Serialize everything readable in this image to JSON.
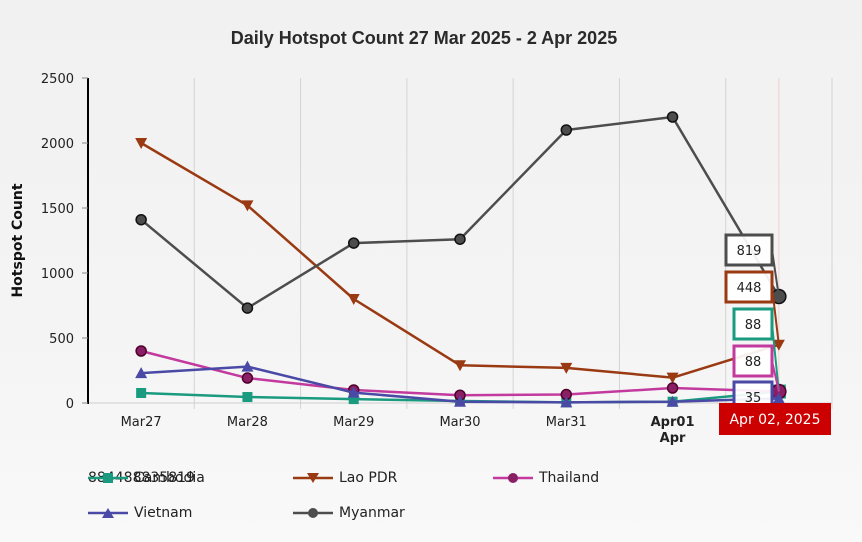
{
  "chart_data": {
    "type": "line",
    "title": "Daily Hotspot Count 27 Mar 2025 - 2 Apr 2025",
    "xlabel": "",
    "ylabel": "Hotspot Count",
    "ylim": [
      0,
      2500
    ],
    "yticks": [
      0,
      500,
      1000,
      1500,
      2000,
      2500
    ],
    "categories": [
      "Mar27",
      "Mar28",
      "Mar29",
      "Mar30",
      "Mar31",
      "Apr01",
      "Apr02"
    ],
    "category_labels": [
      "Mar27",
      "Mar28",
      "Mar29",
      "Mar30",
      "Mar31",
      "Apr01\nApr",
      ""
    ],
    "grid": "vertical",
    "legend_position": "bottom",
    "series": [
      {
        "name": "Cambodia",
        "color": "#1a9a7e",
        "marker": "square",
        "values": [
          77,
          46,
          30,
          15,
          5,
          10,
          88
        ],
        "latest": "88"
      },
      {
        "name": "Lao PDR",
        "color": "#9a3a12",
        "marker": "triangle-down",
        "values": [
          2000,
          1520,
          800,
          290,
          270,
          195,
          448
        ],
        "latest": "448"
      },
      {
        "name": "Thailand",
        "color": "#c23a9e",
        "marker": "circle",
        "values": [
          400,
          192,
          100,
          60,
          65,
          115,
          88
        ],
        "latest": "88"
      },
      {
        "name": "Vietnam",
        "color": "#4a4aa6",
        "marker": "triangle-up",
        "values": [
          230,
          280,
          80,
          10,
          5,
          10,
          35
        ],
        "latest": "35"
      },
      {
        "name": "Myanmar",
        "color": "#4d4d4d",
        "marker": "circle",
        "values": [
          1410,
          730,
          1230,
          1260,
          2100,
          2200,
          819
        ],
        "latest": "819"
      }
    ],
    "tooltip": {
      "category": "Apr02",
      "date_label": "Apr 02, 2025",
      "label_color": "#cc0000",
      "values": [
        {
          "series": "Myanmar",
          "value": "819"
        },
        {
          "series": "Lao PDR",
          "value": "448"
        },
        {
          "series": "Cambodia",
          "value": "88"
        },
        {
          "series": "Thailand",
          "value": "88"
        },
        {
          "series": "Vietnam",
          "value": "35"
        }
      ]
    }
  },
  "legend": {
    "rows": [
      [
        {
          "name": "Cambodia",
          "value": "88"
        },
        {
          "name": "Lao PDR",
          "value": "448"
        },
        {
          "name": "Thailand",
          "value": "88"
        }
      ],
      [
        {
          "name": "Vietnam",
          "value": "35"
        },
        {
          "name": "Myanmar",
          "value": "819"
        }
      ]
    ]
  }
}
